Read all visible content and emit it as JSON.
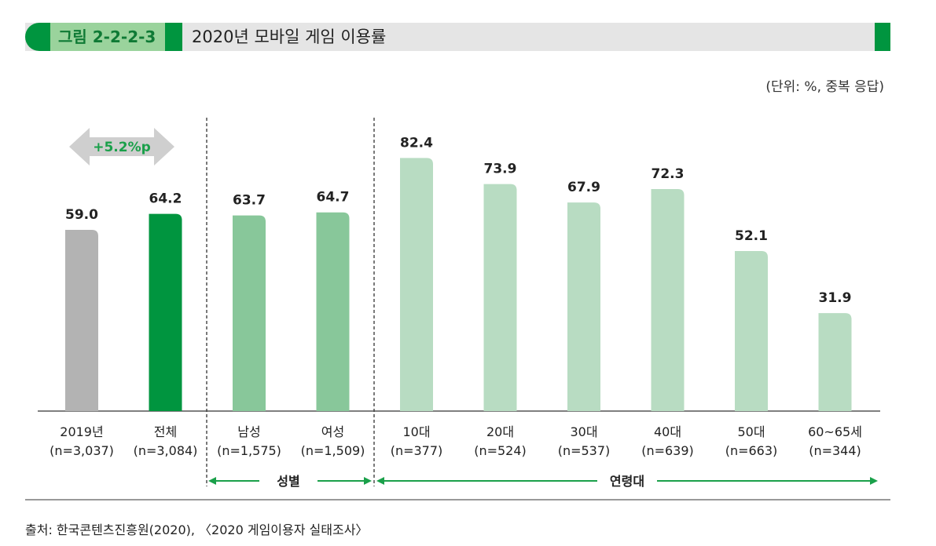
{
  "header": {
    "figure_number": "그림 2-2-2-3",
    "title": "2020년 모바일 게임 이용률"
  },
  "unit_note": "(단위: %, 중복 응답)",
  "change_badge": "+5.2%p",
  "groups": {
    "gender": "성별",
    "age": "연령대"
  },
  "source": "출처: 한국콘텐츠진흥원(2020), 〈2020 게임이용자 실태조사〉",
  "colors": {
    "accent": "#00953f",
    "gray_bar": "#b3b3b3",
    "gender_bar": "#88c79a",
    "age_bar": "#b8dcc2",
    "arrow_green": "#1aa04a"
  },
  "chart_data": {
    "type": "bar",
    "title": "2020년 모바일 게임 이용률",
    "ylabel": "",
    "ylim": [
      0,
      100
    ],
    "grid": false,
    "categories": [
      "2019년",
      "전체",
      "남성",
      "여성",
      "10대",
      "20대",
      "30대",
      "40대",
      "50대",
      "60~65세"
    ],
    "sample_sizes": [
      "(n=3,037)",
      "(n=3,084)",
      "(n=1,575)",
      "(n=1,509)",
      "(n=377)",
      "(n=524)",
      "(n=537)",
      "(n=639)",
      "(n=663)",
      "(n=344)"
    ],
    "values": [
      59.0,
      64.2,
      63.7,
      64.7,
      82.4,
      73.9,
      67.9,
      72.3,
      52.1,
      31.9
    ],
    "value_labels": [
      "59.0",
      "64.2",
      "63.7",
      "64.7",
      "82.4",
      "73.9",
      "67.9",
      "72.3",
      "52.1",
      "31.9"
    ]
  }
}
